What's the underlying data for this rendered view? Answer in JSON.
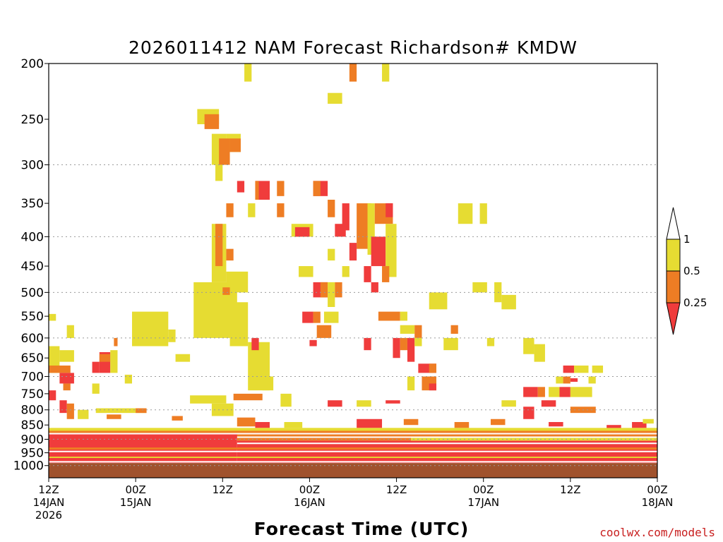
{
  "chart_data": {
    "type": "heatmap",
    "title": "2026011412 NAM Forecast Richardson# KMDW",
    "xlabel": "Forecast Time (UTC)",
    "ylabel": "",
    "credit": "coolwx.com/models",
    "y_scale": "log-pressure",
    "y_range_hpa": [
      1050,
      200
    ],
    "x_range_hours": [
      0,
      84
    ],
    "y_ticks": [
      200,
      250,
      300,
      350,
      400,
      450,
      500,
      550,
      600,
      650,
      700,
      750,
      800,
      850,
      900,
      950,
      1000
    ],
    "y_gridlines": [
      300,
      400,
      500,
      600,
      700,
      800,
      900,
      1000
    ],
    "x_ticks": [
      {
        "hour": 0,
        "lines": [
          "12Z",
          "14JAN",
          "2026"
        ]
      },
      {
        "hour": 12,
        "lines": [
          "00Z",
          "15JAN"
        ]
      },
      {
        "hour": 24,
        "lines": [
          "12Z"
        ]
      },
      {
        "hour": 36,
        "lines": [
          "00Z",
          "16JAN"
        ]
      },
      {
        "hour": 48,
        "lines": [
          "12Z"
        ]
      },
      {
        "hour": 60,
        "lines": [
          "00Z",
          "17JAN"
        ]
      },
      {
        "hour": 72,
        "lines": [
          "12Z"
        ]
      },
      {
        "hour": 84,
        "lines": [
          "00Z",
          "18JAN"
        ]
      }
    ],
    "colorbar": {
      "levels": [
        "1",
        "0.5",
        "0.25"
      ],
      "colors": {
        "lt_0_25": "#f03c3c",
        "0_25_to_0_5": "#ee7d24",
        "0_5_to_1": "#e6dc32",
        "gt_1": "#ffffff"
      }
    },
    "ground_color": "#a0522d",
    "categories": {
      "red": "Ri < 0.25",
      "orange": "0.25 <= Ri < 0.5",
      "yellow": "0.5 <= Ri < 1"
    },
    "cells": [
      {
        "h0": 27,
        "h1": 28,
        "p0": 200,
        "p1": 215,
        "cat": "yellow"
      },
      {
        "h0": 41.5,
        "h1": 42.5,
        "p0": 200,
        "p1": 215,
        "cat": "orange"
      },
      {
        "h0": 46,
        "h1": 47,
        "p0": 200,
        "p1": 215,
        "cat": "yellow"
      },
      {
        "h0": 38.5,
        "h1": 40.5,
        "p0": 225,
        "p1": 235,
        "cat": "yellow"
      },
      {
        "h0": 20.5,
        "h1": 23.5,
        "p0": 240,
        "p1": 255,
        "cat": "yellow"
      },
      {
        "h0": 21.5,
        "h1": 23.5,
        "p0": 245,
        "p1": 260,
        "cat": "orange"
      },
      {
        "h0": 22.5,
        "h1": 24.5,
        "p0": 265,
        "p1": 300,
        "cat": "yellow"
      },
      {
        "h0": 24.5,
        "h1": 26.5,
        "p0": 265,
        "p1": 285,
        "cat": "yellow"
      },
      {
        "h0": 23.5,
        "h1": 25,
        "p0": 270,
        "p1": 300,
        "cat": "orange"
      },
      {
        "h0": 25,
        "h1": 26.5,
        "p0": 270,
        "p1": 285,
        "cat": "orange"
      },
      {
        "h0": 23,
        "h1": 24,
        "p0": 300,
        "p1": 320,
        "cat": "yellow"
      },
      {
        "h0": 26,
        "h1": 27,
        "p0": 320,
        "p1": 335,
        "cat": "red"
      },
      {
        "h0": 28.5,
        "h1": 30.5,
        "p0": 320,
        "p1": 345,
        "cat": "red"
      },
      {
        "h0": 28.5,
        "h1": 29,
        "p0": 320,
        "p1": 345,
        "cat": "orange"
      },
      {
        "h0": 31.5,
        "h1": 32.5,
        "p0": 320,
        "p1": 340,
        "cat": "orange"
      },
      {
        "h0": 36.5,
        "h1": 38.5,
        "p0": 320,
        "p1": 340,
        "cat": "red"
      },
      {
        "h0": 36.5,
        "h1": 37.5,
        "p0": 320,
        "p1": 340,
        "cat": "orange"
      },
      {
        "h0": 24.5,
        "h1": 25.5,
        "p0": 350,
        "p1": 370,
        "cat": "orange"
      },
      {
        "h0": 27.5,
        "h1": 28.5,
        "p0": 350,
        "p1": 370,
        "cat": "yellow"
      },
      {
        "h0": 31.5,
        "h1": 32.5,
        "p0": 350,
        "p1": 370,
        "cat": "orange"
      },
      {
        "h0": 38.5,
        "h1": 39.5,
        "p0": 345,
        "p1": 370,
        "cat": "orange"
      },
      {
        "h0": 40.5,
        "h1": 41.5,
        "p0": 350,
        "p1": 390,
        "cat": "red"
      },
      {
        "h0": 42.5,
        "h1": 44.5,
        "p0": 350,
        "p1": 420,
        "cat": "orange"
      },
      {
        "h0": 44,
        "h1": 45,
        "p0": 350,
        "p1": 430,
        "cat": "yellow"
      },
      {
        "h0": 45,
        "h1": 47.5,
        "p0": 350,
        "p1": 380,
        "cat": "orange"
      },
      {
        "h0": 46.5,
        "h1": 47.5,
        "p0": 350,
        "p1": 370,
        "cat": "red"
      },
      {
        "h0": 22.5,
        "h1": 24.5,
        "p0": 380,
        "p1": 480,
        "cat": "yellow"
      },
      {
        "h0": 23,
        "h1": 24,
        "p0": 380,
        "p1": 450,
        "cat": "orange"
      },
      {
        "h0": 33.5,
        "h1": 36.5,
        "p0": 380,
        "p1": 400,
        "cat": "yellow"
      },
      {
        "h0": 34,
        "h1": 36,
        "p0": 385,
        "p1": 400,
        "cat": "red"
      },
      {
        "h0": 39.5,
        "h1": 41,
        "p0": 380,
        "p1": 400,
        "cat": "red"
      },
      {
        "h0": 44.5,
        "h1": 46.5,
        "p0": 400,
        "p1": 450,
        "cat": "red"
      },
      {
        "h0": 46.5,
        "h1": 48,
        "p0": 380,
        "p1": 470,
        "cat": "yellow"
      },
      {
        "h0": 56.5,
        "h1": 58.5,
        "p0": 350,
        "p1": 380,
        "cat": "yellow"
      },
      {
        "h0": 59.5,
        "h1": 60.5,
        "p0": 350,
        "p1": 380,
        "cat": "yellow"
      },
      {
        "h0": 24.5,
        "h1": 25.5,
        "p0": 420,
        "p1": 440,
        "cat": "orange"
      },
      {
        "h0": 38.5,
        "h1": 39.5,
        "p0": 420,
        "p1": 440,
        "cat": "yellow"
      },
      {
        "h0": 41.5,
        "h1": 42.5,
        "p0": 410,
        "p1": 440,
        "cat": "red"
      },
      {
        "h0": 34.5,
        "h1": 36.5,
        "p0": 450,
        "p1": 470,
        "cat": "yellow"
      },
      {
        "h0": 40.5,
        "h1": 41.5,
        "p0": 450,
        "p1": 470,
        "cat": "yellow"
      },
      {
        "h0": 43.5,
        "h1": 44.5,
        "p0": 450,
        "p1": 480,
        "cat": "red"
      },
      {
        "h0": 46,
        "h1": 47,
        "p0": 450,
        "p1": 480,
        "cat": "orange"
      },
      {
        "h0": 24.5,
        "h1": 27.5,
        "p0": 460,
        "p1": 500,
        "cat": "yellow"
      },
      {
        "h0": 20,
        "h1": 26,
        "p0": 480,
        "p1": 600,
        "cat": "yellow"
      },
      {
        "h0": 24,
        "h1": 25,
        "p0": 490,
        "p1": 505,
        "cat": "orange"
      },
      {
        "h0": 36.5,
        "h1": 38.5,
        "p0": 480,
        "p1": 510,
        "cat": "red"
      },
      {
        "h0": 37.5,
        "h1": 38.5,
        "p0": 480,
        "p1": 510,
        "cat": "orange"
      },
      {
        "h0": 38.5,
        "h1": 39.5,
        "p0": 480,
        "p1": 530,
        "cat": "yellow"
      },
      {
        "h0": 39.5,
        "h1": 40.5,
        "p0": 480,
        "p1": 510,
        "cat": "orange"
      },
      {
        "h0": 44.5,
        "h1": 45.5,
        "p0": 480,
        "p1": 500,
        "cat": "red"
      },
      {
        "h0": 52.5,
        "h1": 55,
        "p0": 500,
        "p1": 535,
        "cat": "yellow"
      },
      {
        "h0": 58.5,
        "h1": 60.5,
        "p0": 480,
        "p1": 500,
        "cat": "yellow"
      },
      {
        "h0": 61.5,
        "h1": 62.5,
        "p0": 480,
        "p1": 520,
        "cat": "yellow"
      },
      {
        "h0": 62.5,
        "h1": 64.5,
        "p0": 505,
        "p1": 535,
        "cat": "yellow"
      },
      {
        "h0": 25,
        "h1": 27.5,
        "p0": 520,
        "p1": 620,
        "cat": "yellow"
      },
      {
        "h0": 11.5,
        "h1": 16.5,
        "p0": 540,
        "p1": 620,
        "cat": "yellow"
      },
      {
        "h0": 16.5,
        "h1": 17.5,
        "p0": 580,
        "p1": 610,
        "cat": "yellow"
      },
      {
        "h0": 27.5,
        "h1": 30.5,
        "p0": 610,
        "p1": 740,
        "cat": "yellow"
      },
      {
        "h0": 29.5,
        "h1": 31,
        "p0": 700,
        "p1": 740,
        "cat": "yellow"
      },
      {
        "h0": 35,
        "h1": 36.5,
        "p0": 540,
        "p1": 565,
        "cat": "red"
      },
      {
        "h0": 36.5,
        "h1": 37.5,
        "p0": 540,
        "p1": 565,
        "cat": "orange"
      },
      {
        "h0": 38,
        "h1": 40,
        "p0": 540,
        "p1": 565,
        "cat": "yellow"
      },
      {
        "h0": 37,
        "h1": 39,
        "p0": 570,
        "p1": 600,
        "cat": "orange"
      },
      {
        "h0": 45.5,
        "h1": 48.5,
        "p0": 540,
        "p1": 560,
        "cat": "orange"
      },
      {
        "h0": 48.5,
        "h1": 49.5,
        "p0": 540,
        "p1": 560,
        "cat": "yellow"
      },
      {
        "h0": 0,
        "h1": 1,
        "p0": 545,
        "p1": 560,
        "cat": "yellow"
      },
      {
        "h0": 2.5,
        "h1": 3.5,
        "p0": 570,
        "p1": 600,
        "cat": "yellow"
      },
      {
        "h0": 48.5,
        "h1": 50.5,
        "p0": 570,
        "p1": 590,
        "cat": "yellow"
      },
      {
        "h0": 50.5,
        "h1": 51.5,
        "p0": 570,
        "p1": 600,
        "cat": "orange"
      },
      {
        "h0": 55.5,
        "h1": 56.5,
        "p0": 570,
        "p1": 590,
        "cat": "orange"
      },
      {
        "h0": 9,
        "h1": 9.5,
        "p0": 600,
        "p1": 620,
        "cat": "orange"
      },
      {
        "h0": 28,
        "h1": 29,
        "p0": 600,
        "p1": 630,
        "cat": "red"
      },
      {
        "h0": 36,
        "h1": 37,
        "p0": 605,
        "p1": 620,
        "cat": "red"
      },
      {
        "h0": 43.5,
        "h1": 44.5,
        "p0": 600,
        "p1": 630,
        "cat": "red"
      },
      {
        "h0": 47.5,
        "h1": 48.5,
        "p0": 600,
        "p1": 650,
        "cat": "red"
      },
      {
        "h0": 48.5,
        "h1": 49.5,
        "p0": 600,
        "p1": 630,
        "cat": "orange"
      },
      {
        "h0": 49.5,
        "h1": 50.5,
        "p0": 600,
        "p1": 660,
        "cat": "red"
      },
      {
        "h0": 50.5,
        "h1": 51.5,
        "p0": 600,
        "p1": 620,
        "cat": "yellow"
      },
      {
        "h0": 54.5,
        "h1": 56.5,
        "p0": 600,
        "p1": 630,
        "cat": "yellow"
      },
      {
        "h0": 60.5,
        "h1": 61.5,
        "p0": 600,
        "p1": 620,
        "cat": "yellow"
      },
      {
        "h0": 65.5,
        "h1": 67,
        "p0": 600,
        "p1": 640,
        "cat": "yellow"
      },
      {
        "h0": 67,
        "h1": 68.5,
        "p0": 615,
        "p1": 660,
        "cat": "yellow"
      },
      {
        "h0": 0,
        "h1": 1.5,
        "p0": 620,
        "p1": 690,
        "cat": "yellow"
      },
      {
        "h0": 1.5,
        "h1": 3.5,
        "p0": 630,
        "p1": 660,
        "cat": "yellow"
      },
      {
        "h0": 0,
        "h1": 3,
        "p0": 670,
        "p1": 690,
        "cat": "orange"
      },
      {
        "h0": 1.5,
        "h1": 3.5,
        "p0": 690,
        "p1": 720,
        "cat": "red"
      },
      {
        "h0": 2,
        "h1": 3,
        "p0": 720,
        "p1": 740,
        "cat": "orange"
      },
      {
        "h0": 6,
        "h1": 7,
        "p0": 660,
        "p1": 690,
        "cat": "red"
      },
      {
        "h0": 7,
        "h1": 8.5,
        "p0": 635,
        "p1": 690,
        "cat": "red"
      },
      {
        "h0": 7,
        "h1": 8.5,
        "p0": 640,
        "p1": 660,
        "cat": "orange"
      },
      {
        "h0": 8.5,
        "h1": 9.5,
        "p0": 630,
        "p1": 690,
        "cat": "yellow"
      },
      {
        "h0": 6,
        "h1": 7,
        "p0": 720,
        "p1": 750,
        "cat": "yellow"
      },
      {
        "h0": 10.5,
        "h1": 11.5,
        "p0": 695,
        "p1": 720,
        "cat": "yellow"
      },
      {
        "h0": 17.5,
        "h1": 19.5,
        "p0": 640,
        "p1": 660,
        "cat": "yellow"
      },
      {
        "h0": 51,
        "h1": 53.5,
        "p0": 665,
        "p1": 690,
        "cat": "red"
      },
      {
        "h0": 52.5,
        "h1": 53.5,
        "p0": 665,
        "p1": 690,
        "cat": "orange"
      },
      {
        "h0": 49.5,
        "h1": 50.5,
        "p0": 700,
        "p1": 740,
        "cat": "yellow"
      },
      {
        "h0": 51.5,
        "h1": 53.5,
        "p0": 700,
        "p1": 740,
        "cat": "orange"
      },
      {
        "h0": 52.5,
        "h1": 53.5,
        "p0": 720,
        "p1": 740,
        "cat": "red"
      },
      {
        "h0": 71,
        "h1": 72.5,
        "p0": 670,
        "p1": 690,
        "cat": "red"
      },
      {
        "h0": 72.5,
        "h1": 74.5,
        "p0": 670,
        "p1": 690,
        "cat": "yellow"
      },
      {
        "h0": 75,
        "h1": 76.5,
        "p0": 670,
        "p1": 690,
        "cat": "yellow"
      },
      {
        "h0": 70,
        "h1": 71,
        "p0": 700,
        "p1": 720,
        "cat": "yellow"
      },
      {
        "h0": 71,
        "h1": 72,
        "p0": 700,
        "p1": 720,
        "cat": "orange"
      },
      {
        "h0": 72,
        "h1": 73,
        "p0": 705,
        "p1": 715,
        "cat": "red"
      },
      {
        "h0": 74.5,
        "h1": 75.5,
        "p0": 700,
        "p1": 720,
        "cat": "yellow"
      },
      {
        "h0": 65.5,
        "h1": 67.5,
        "p0": 730,
        "p1": 760,
        "cat": "red"
      },
      {
        "h0": 67.5,
        "h1": 68.5,
        "p0": 730,
        "p1": 760,
        "cat": "orange"
      },
      {
        "h0": 69,
        "h1": 70.5,
        "p0": 730,
        "p1": 760,
        "cat": "yellow"
      },
      {
        "h0": 70.5,
        "h1": 72,
        "p0": 730,
        "p1": 760,
        "cat": "red"
      },
      {
        "h0": 72,
        "h1": 75,
        "p0": 730,
        "p1": 760,
        "cat": "yellow"
      },
      {
        "h0": 25.5,
        "h1": 29.5,
        "p0": 750,
        "p1": 770,
        "cat": "orange"
      },
      {
        "h0": 19.5,
        "h1": 24.5,
        "p0": 755,
        "p1": 780,
        "cat": "yellow"
      },
      {
        "h0": 22.5,
        "h1": 25.5,
        "p0": 780,
        "p1": 820,
        "cat": "yellow"
      },
      {
        "h0": 32,
        "h1": 33.5,
        "p0": 750,
        "p1": 790,
        "cat": "yellow"
      },
      {
        "h0": 38.5,
        "h1": 40.5,
        "p0": 770,
        "p1": 790,
        "cat": "red"
      },
      {
        "h0": 42.5,
        "h1": 44.5,
        "p0": 770,
        "p1": 790,
        "cat": "yellow"
      },
      {
        "h0": 46.5,
        "h1": 48.5,
        "p0": 770,
        "p1": 780,
        "cat": "red"
      },
      {
        "h0": 62.5,
        "h1": 64.5,
        "p0": 770,
        "p1": 790,
        "cat": "yellow"
      },
      {
        "h0": 65.5,
        "h1": 67,
        "p0": 790,
        "p1": 830,
        "cat": "red"
      },
      {
        "h0": 68,
        "h1": 70,
        "p0": 770,
        "p1": 790,
        "cat": "red"
      },
      {
        "h0": 72,
        "h1": 75.5,
        "p0": 790,
        "p1": 810,
        "cat": "orange"
      },
      {
        "h0": 0,
        "h1": 1,
        "p0": 740,
        "p1": 770,
        "cat": "red"
      },
      {
        "h0": 1.5,
        "h1": 2.5,
        "p0": 770,
        "p1": 810,
        "cat": "red"
      },
      {
        "h0": 2.5,
        "h1": 3.5,
        "p0": 780,
        "p1": 830,
        "cat": "orange"
      },
      {
        "h0": 4,
        "h1": 5.5,
        "p0": 800,
        "p1": 830,
        "cat": "yellow"
      },
      {
        "h0": 6.5,
        "h1": 13.5,
        "p0": 795,
        "p1": 810,
        "cat": "yellow"
      },
      {
        "h0": 12,
        "h1": 13.5,
        "p0": 795,
        "p1": 810,
        "cat": "orange"
      },
      {
        "h0": 8,
        "h1": 10,
        "p0": 815,
        "p1": 830,
        "cat": "orange"
      },
      {
        "h0": 17,
        "h1": 18.5,
        "p0": 820,
        "p1": 835,
        "cat": "orange"
      },
      {
        "h0": 26,
        "h1": 28.5,
        "p0": 825,
        "p1": 855,
        "cat": "orange"
      },
      {
        "h0": 28.5,
        "h1": 30.5,
        "p0": 840,
        "p1": 860,
        "cat": "red"
      },
      {
        "h0": 32.5,
        "h1": 35,
        "p0": 840,
        "p1": 860,
        "cat": "yellow"
      },
      {
        "h0": 42.5,
        "h1": 46,
        "p0": 830,
        "p1": 860,
        "cat": "red"
      },
      {
        "h0": 49,
        "h1": 51,
        "p0": 830,
        "p1": 850,
        "cat": "orange"
      },
      {
        "h0": 56,
        "h1": 58,
        "p0": 840,
        "p1": 860,
        "cat": "orange"
      },
      {
        "h0": 61,
        "h1": 63,
        "p0": 830,
        "p1": 850,
        "cat": "orange"
      },
      {
        "h0": 69,
        "h1": 71,
        "p0": 840,
        "p1": 855,
        "cat": "red"
      },
      {
        "h0": 77,
        "h1": 79,
        "p0": 850,
        "p1": 870,
        "cat": "red"
      },
      {
        "h0": 80.5,
        "h1": 82.5,
        "p0": 840,
        "p1": 860,
        "cat": "red"
      },
      {
        "h0": 82,
        "h1": 83.5,
        "p0": 830,
        "p1": 845,
        "cat": "yellow"
      },
      {
        "h0": 0,
        "h1": 84,
        "p0": 860,
        "p1": 880,
        "cat": "yellow"
      },
      {
        "h0": 0,
        "h1": 84,
        "p0": 870,
        "p1": 890,
        "cat": "orange"
      },
      {
        "h0": 0,
        "h1": 26,
        "p0": 880,
        "p1": 990,
        "cat": "red"
      },
      {
        "h0": 26,
        "h1": 84,
        "p0": 905,
        "p1": 990,
        "cat": "red"
      },
      {
        "h0": 26,
        "h1": 50,
        "p0": 895,
        "p1": 905,
        "cat": "orange"
      },
      {
        "h0": 50,
        "h1": 84,
        "p0": 895,
        "p1": 905,
        "cat": "yellow"
      },
      {
        "h0": 0,
        "h1": 84,
        "p0": 930,
        "p1": 938,
        "cat": "orange"
      },
      {
        "h0": 0,
        "h1": 84,
        "p0": 965,
        "p1": 970,
        "cat": "yellow"
      }
    ],
    "white_layers": [
      {
        "hpa": 880,
        "h0": 0,
        "h1": 84
      },
      {
        "hpa": 915,
        "h0": 26,
        "h1": 84
      },
      {
        "hpa": 945,
        "h0": 0,
        "h1": 84
      },
      {
        "hpa": 985,
        "h0": 0,
        "h1": 84
      }
    ]
  }
}
